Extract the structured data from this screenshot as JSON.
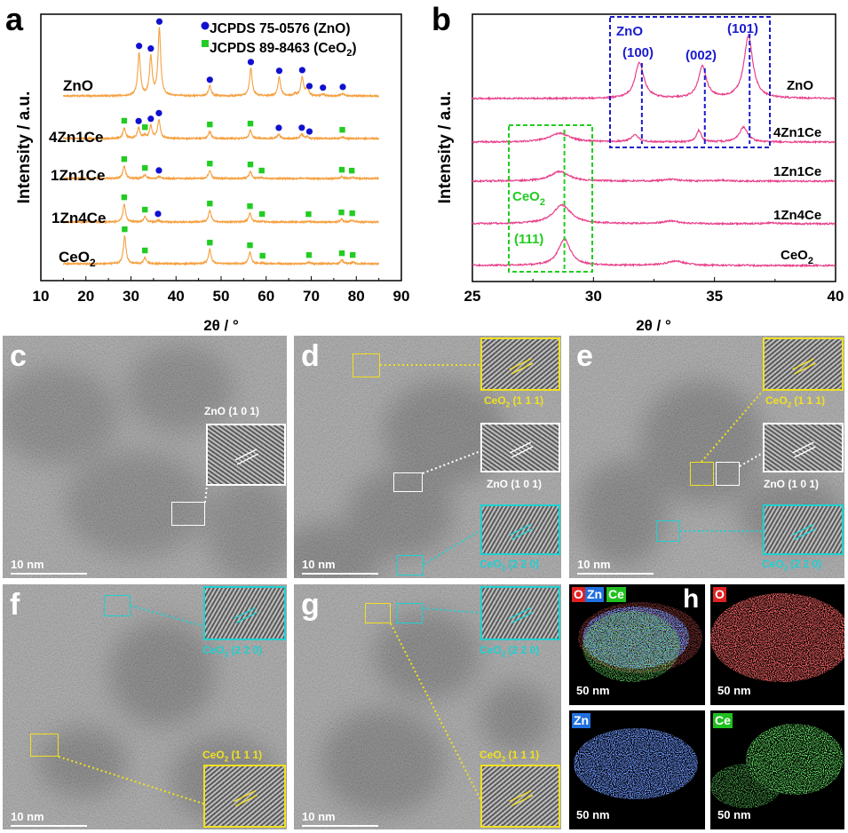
{
  "chart_data": [
    {
      "panel": "a",
      "type": "line",
      "xlabel": "2θ / °",
      "ylabel": "Intensity / a.u.",
      "xlim": [
        10,
        90
      ],
      "xticks": [
        10,
        20,
        30,
        40,
        50,
        60,
        70,
        80,
        90
      ],
      "legend": [
        {
          "marker": "circle",
          "color": "#1010d0",
          "text": "JCPDS 75-0576 (ZnO)",
          "main": "JCPDS 75-0576 (ZnO)",
          "sub": ""
        },
        {
          "marker": "square",
          "color": "#22cc22",
          "main": "JCPDS 89-8463 (CeO",
          "sub": "2",
          "tail": ")"
        }
      ],
      "line_color": "#f5a040",
      "series": [
        {
          "name": "ZnO",
          "main": "ZnO",
          "sub": "",
          "peaks": [
            [
              31.8,
              48
            ],
            [
              34.4,
              43
            ],
            [
              36.3,
              75
            ],
            [
              47.5,
              11
            ],
            [
              56.6,
              31
            ],
            [
              62.9,
              21
            ],
            [
              68.0,
              21
            ],
            [
              69.1,
              9
            ],
            [
              72.6,
              2
            ],
            [
              77.0,
              3
            ],
            [
              66.4,
              2
            ]
          ],
          "zno_markers": [
            31.8,
            34.4,
            36.3,
            47.5,
            56.6,
            62.9,
            68.0,
            69.6,
            72.6,
            77.0
          ],
          "ceo2_markers": []
        },
        {
          "name": "4Zn1Ce",
          "main": "4Zn1Ce",
          "sub": "",
          "peaks": [
            [
              28.5,
              12
            ],
            [
              31.7,
              12
            ],
            [
              33.1,
              3
            ],
            [
              34.4,
              14
            ],
            [
              36.2,
              21
            ],
            [
              47.5,
              8
            ],
            [
              56.5,
              9
            ],
            [
              62.8,
              5
            ],
            [
              67.9,
              5
            ],
            [
              69.1,
              2
            ],
            [
              76.9,
              2
            ]
          ],
          "zno_markers": [
            31.7,
            34.4,
            36.2,
            62.8,
            67.9,
            69.6
          ],
          "ceo2_markers": [
            28.5,
            33.1,
            47.5,
            56.5,
            76.9
          ]
        },
        {
          "name": "1Zn1Ce",
          "main": "1Zn1Ce",
          "sub": "",
          "peaks": [
            [
              28.5,
              14
            ],
            [
              33.1,
              4
            ],
            [
              36.2,
              2
            ],
            [
              47.5,
              9
            ],
            [
              56.5,
              8
            ],
            [
              59.0,
              1
            ],
            [
              76.8,
              2
            ],
            [
              79.0,
              1
            ]
          ],
          "zno_markers": [
            36.2
          ],
          "ceo2_markers": [
            28.5,
            33.1,
            47.5,
            56.5,
            59.0,
            76.8,
            79.0
          ]
        },
        {
          "name": "1Zn4Ce",
          "main": "1Zn4Ce",
          "sub": "",
          "peaks": [
            [
              28.5,
              20
            ],
            [
              33.1,
              6
            ],
            [
              36.0,
              2
            ],
            [
              47.5,
              13
            ],
            [
              56.4,
              10
            ],
            [
              59.1,
              1
            ],
            [
              69.4,
              1
            ],
            [
              76.7,
              3
            ],
            [
              79.1,
              2
            ]
          ],
          "zno_markers": [
            36.0
          ],
          "ceo2_markers": [
            28.5,
            33.1,
            47.5,
            56.4,
            59.1,
            69.4,
            76.7,
            79.1
          ]
        },
        {
          "name": "CeO2",
          "main": "CeO",
          "sub": "2",
          "peaks": [
            [
              28.6,
              31
            ],
            [
              33.1,
              7
            ],
            [
              47.5,
              16
            ],
            [
              56.4,
              13
            ],
            [
              59.2,
              1
            ],
            [
              69.5,
              2
            ],
            [
              76.8,
              4
            ],
            [
              79.2,
              2
            ]
          ],
          "zno_markers": [],
          "ceo2_markers": [
            28.6,
            33.1,
            47.5,
            56.4,
            59.2,
            69.5,
            76.8,
            79.2
          ]
        }
      ]
    },
    {
      "panel": "b",
      "type": "line",
      "xlabel": "2θ / °",
      "ylabel": "Intensity / a.u.",
      "xlim": [
        25,
        40
      ],
      "xticks": [
        25,
        30,
        35,
        40
      ],
      "line_color": "#e8408a",
      "series": [
        {
          "name": "ZnO",
          "main": "ZnO",
          "sub": "",
          "peaks": [
            [
              31.9,
              40,
              0.22
            ],
            [
              34.5,
              36,
              0.2
            ],
            [
              36.4,
              70,
              0.22
            ]
          ]
        },
        {
          "name": "4Zn1Ce",
          "main": "4Zn1Ce",
          "sub": "",
          "peaks": [
            [
              28.6,
              10,
              0.5
            ],
            [
              31.7,
              8,
              0.18
            ],
            [
              34.35,
              13,
              0.12
            ],
            [
              36.2,
              17,
              0.2
            ]
          ]
        },
        {
          "name": "1Zn1Ce",
          "main": "1Zn1Ce",
          "sub": "",
          "peaks": [
            [
              28.6,
              11,
              0.45
            ],
            [
              33.2,
              2,
              0.4
            ],
            [
              35.3,
              1,
              0.3
            ]
          ]
        },
        {
          "name": "1Zn4Ce",
          "main": "1Zn4Ce",
          "sub": "",
          "peaks": [
            [
              28.7,
              21,
              0.45
            ],
            [
              33.2,
              3,
              0.4
            ],
            [
              37.3,
              1,
              0.3
            ]
          ]
        },
        {
          "name": "CeO2",
          "main": "CeO",
          "sub": "2",
          "peaks": [
            [
              28.8,
              30,
              0.3
            ],
            [
              33.4,
              5,
              0.45
            ]
          ]
        }
      ],
      "annotations": {
        "zno_box": {
          "color": "#1a1ad0",
          "title": "ZnO",
          "planes": [
            {
              "label": "(100)",
              "x": 32.0
            },
            {
              "label": "(002)",
              "x": 34.6
            },
            {
              "label": "(101)",
              "x": 36.45
            }
          ]
        },
        "ceo2_box": {
          "color": "#22cc22",
          "title_main": "CeO",
          "title_sub": "2",
          "plane": "(111)",
          "x": 28.8
        }
      }
    }
  ],
  "panel_labels": {
    "a": "a",
    "b": "b",
    "c": "c",
    "d": "d",
    "e": "e",
    "f": "f",
    "g": "g",
    "h": "h"
  },
  "tem": {
    "scale_bar": "10 nm",
    "colors": {
      "white": "#ffffff",
      "yellow": "#f0e020",
      "cyan": "#20d0d0"
    },
    "labels": {
      "zno_101": {
        "main": "ZnO (1 0 1)"
      },
      "ceo2_111": {
        "main": "CeO",
        "sub": "2",
        "plane": " (1 1 1)"
      },
      "ceo2_220": {
        "main": "CeO",
        "sub": "2",
        "plane": " (2 2 0)"
      }
    }
  },
  "eds": {
    "scale_bar": "50 nm",
    "tags": {
      "O": "O",
      "Zn": "Zn",
      "Ce": "Ce"
    },
    "colors": {
      "O": "#e02020",
      "Zn": "#2070e0",
      "Ce": "#20c020"
    }
  }
}
